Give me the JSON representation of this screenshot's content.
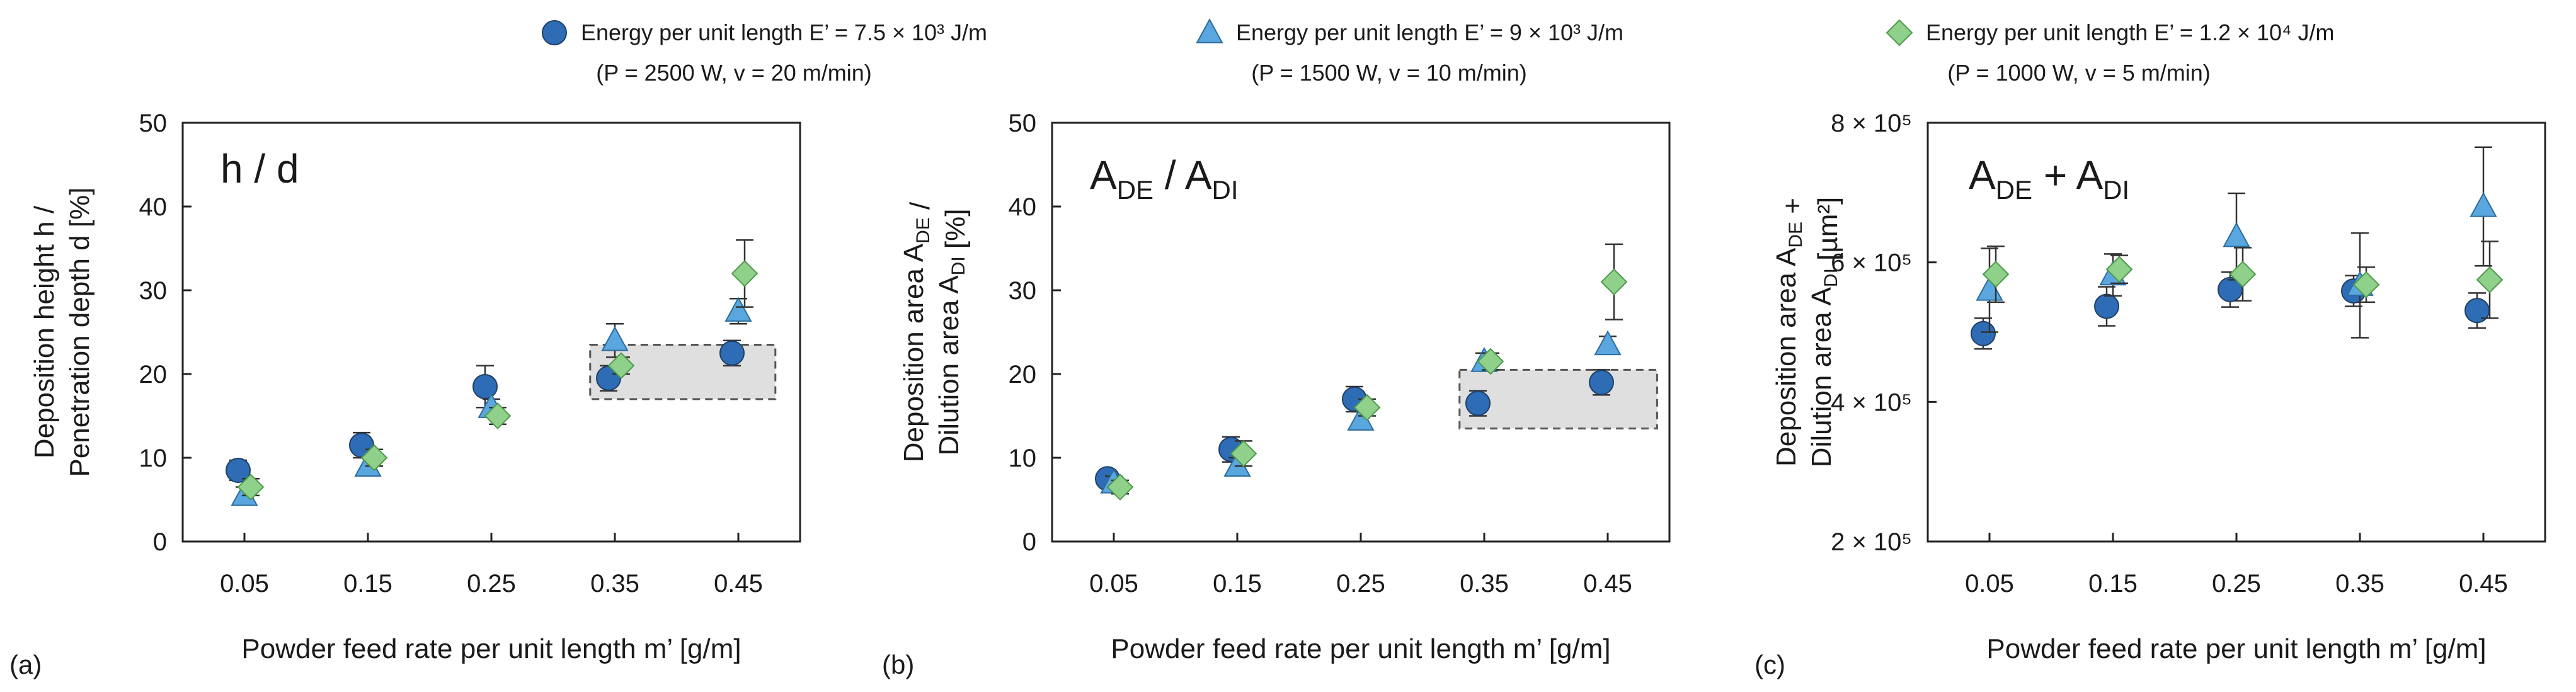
{
  "legend": [
    {
      "name": "Energy per unit length E’ = 7.5 × 10³ J/m",
      "params": "(P = 2500  W, v = 20 m/min)",
      "marker": "circle",
      "color": "#2e6db5",
      "edge": "#1f3f66"
    },
    {
      "name": "Energy per unit length E’ = 9 × 10³ J/m",
      "params": "(P = 1500  W, v = 10 m/min)",
      "marker": "triangle",
      "color": "#5aa7e0",
      "edge": "#2c6d9e"
    },
    {
      "name": "Energy per unit length E’ = 1.2 × 10⁴ J/m",
      "params": "(P = 1000  W, v = 5 m/min)",
      "marker": "diamond",
      "color": "#8fd08a",
      "edge": "#4f9a4c"
    }
  ],
  "chart_data": [
    {
      "type": "scatter",
      "panel": "(a)",
      "title": "h / d",
      "xlabel": "Powder feed rate per unit length m’ [g/m]",
      "ylabel_lines": [
        "Deposition height h /",
        "Penetration depth d [%]"
      ],
      "x_ticks": [
        "0.05",
        "0.15",
        "0.25",
        "0.35",
        "0.45"
      ],
      "x_values": [
        0.05,
        0.15,
        0.25,
        0.35,
        0.45
      ],
      "xlim": [
        0.0,
        0.5
      ],
      "ylim": [
        0,
        50
      ],
      "y_ticks": [
        {
          "value": 0,
          "label": "0"
        },
        {
          "value": 10,
          "label": "10"
        },
        {
          "value": 20,
          "label": "20"
        },
        {
          "value": 30,
          "label": "30"
        },
        {
          "value": 40,
          "label": "40"
        },
        {
          "value": 50,
          "label": "50"
        }
      ],
      "highlight": {
        "x": [
          0.33,
          0.48
        ],
        "y": [
          17,
          23.5
        ]
      },
      "series": [
        {
          "values": [
            8.5,
            11.5,
            18.5,
            19.5,
            22.5
          ],
          "errors": [
            1.2,
            1.5,
            2.5,
            1.5,
            1.5
          ]
        },
        {
          "values": [
            5.5,
            9.0,
            16.0,
            24.0,
            27.5
          ],
          "errors": [
            1.0,
            1.0,
            1.0,
            2.0,
            1.5
          ]
        },
        {
          "values": [
            6.5,
            10.0,
            15.0,
            21.0,
            32.0
          ],
          "errors": [
            1.0,
            1.0,
            1.0,
            1.0,
            4.0
          ]
        }
      ]
    },
    {
      "type": "scatter",
      "panel": "(b)",
      "title_base": [
        "A",
        "A"
      ],
      "title_sub": [
        "DE",
        "DI"
      ],
      "title_sep": " / ",
      "xlabel": "Powder feed rate per unit length m’ [g/m]",
      "ylabel_lines": [
        "Deposition area A_DE /",
        "Dilution area A_DI [%]"
      ],
      "x_ticks": [
        "0.05",
        "0.15",
        "0.25",
        "0.35",
        "0.45"
      ],
      "x_values": [
        0.05,
        0.15,
        0.25,
        0.35,
        0.45
      ],
      "xlim": [
        0.0,
        0.5
      ],
      "ylim": [
        0,
        50
      ],
      "y_ticks": [
        {
          "value": 0,
          "label": "0"
        },
        {
          "value": 10,
          "label": "10"
        },
        {
          "value": 20,
          "label": "20"
        },
        {
          "value": 30,
          "label": "30"
        },
        {
          "value": 40,
          "label": "40"
        },
        {
          "value": 50,
          "label": "50"
        }
      ],
      "highlight": {
        "x": [
          0.33,
          0.49
        ],
        "y": [
          13.5,
          20.5
        ]
      },
      "series": [
        {
          "values": [
            7.5,
            11.0,
            17.0,
            16.5,
            19.0
          ],
          "errors": [
            1.0,
            1.5,
            1.5,
            1.5,
            1.5
          ]
        },
        {
          "values": [
            7.0,
            9.0,
            14.5,
            21.5,
            23.5
          ],
          "errors": [
            0.8,
            1.0,
            1.0,
            1.0,
            1.0
          ]
        },
        {
          "values": [
            6.5,
            10.5,
            16.0,
            21.5,
            31.0
          ],
          "errors": [
            0.8,
            1.5,
            1.0,
            1.0,
            4.5
          ]
        }
      ]
    },
    {
      "type": "scatter",
      "panel": "(c)",
      "title_base": [
        "A",
        "A"
      ],
      "title_sub": [
        "DE",
        "DI"
      ],
      "title_sep": " + ",
      "xlabel": "Powder feed rate per unit length m’ [g/m]",
      "ylabel_lines": [
        "Deposition area A_DE +",
        "Dilution area A_DI [µm²]"
      ],
      "x_ticks": [
        "0.05",
        "0.15",
        "0.25",
        "0.35",
        "0.45"
      ],
      "x_values": [
        0.05,
        0.15,
        0.25,
        0.35,
        0.45
      ],
      "xlim": [
        0.0,
        0.5
      ],
      "ylim": [
        200000,
        800000
      ],
      "y_ticks": [
        {
          "value": 200000,
          "label": "2 × 10⁵"
        },
        {
          "value": 400000,
          "label": "4 × 10⁵"
        },
        {
          "value": 600000,
          "label": "6 × 10⁵"
        },
        {
          "value": 800000,
          "label": "8 × 10⁵"
        }
      ],
      "series": [
        {
          "values": [
            498000,
            537000,
            561000,
            559000,
            531000
          ],
          "errors": [
            22000,
            28000,
            25000,
            22000,
            25000
          ]
        },
        {
          "values": [
            560000,
            582000,
            637000,
            567000,
            680000
          ],
          "errors": [
            60000,
            30000,
            62000,
            75000,
            85000
          ]
        },
        {
          "values": [
            583000,
            590000,
            583000,
            568000,
            575000
          ],
          "errors": [
            40000,
            20000,
            38000,
            25000,
            55000
          ]
        }
      ]
    }
  ]
}
